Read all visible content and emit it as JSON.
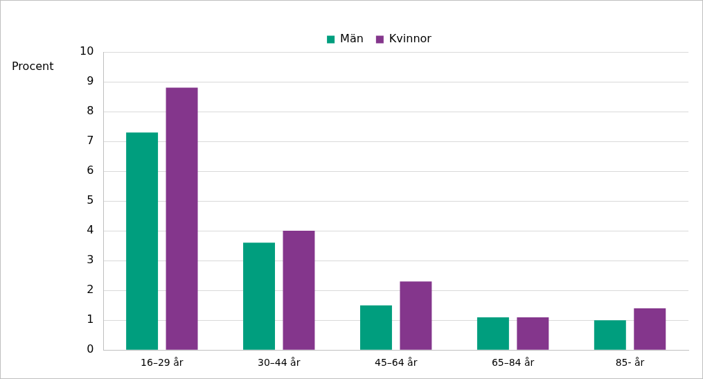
{
  "chart_data": {
    "type": "bar",
    "ylabel": "Procent",
    "categories": [
      "16–29 år",
      "30–44 år",
      "45–64 år",
      "65–84 år",
      "85- år"
    ],
    "series": [
      {
        "name": "Män",
        "color": "#009e7e",
        "values": [
          7.3,
          3.6,
          1.5,
          1.1,
          1.0
        ]
      },
      {
        "name": "Kvinnor",
        "color": "#84368c",
        "values": [
          8.8,
          4.0,
          2.3,
          1.1,
          1.4
        ]
      }
    ],
    "ylim": [
      0,
      10
    ],
    "yticks": [
      0,
      1,
      2,
      3,
      4,
      5,
      6,
      7,
      8,
      9,
      10
    ],
    "grid": true,
    "legend": "top"
  }
}
